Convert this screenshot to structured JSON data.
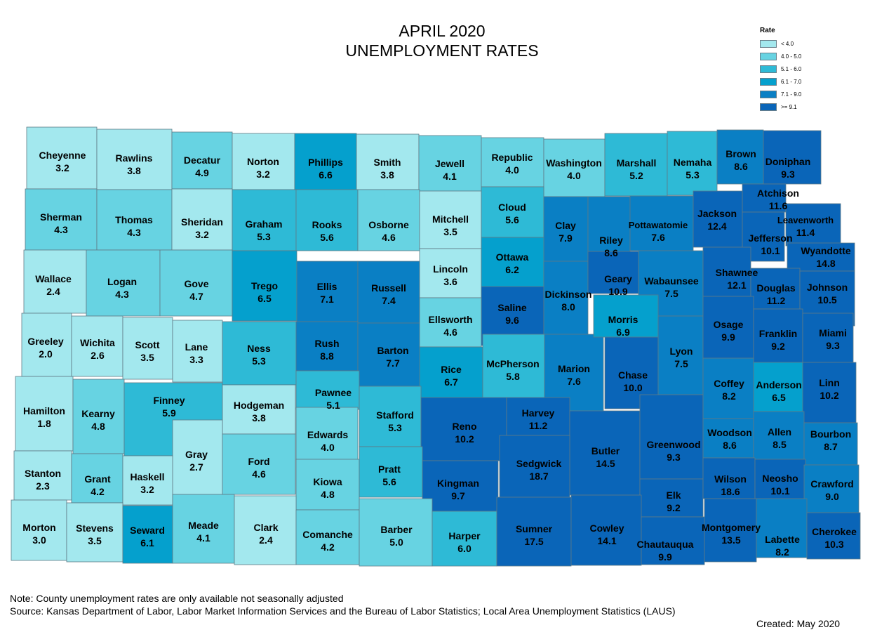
{
  "title": {
    "line1": "APRIL 2020",
    "line2": "UNEMPLOYMENT RATES"
  },
  "legend": {
    "title": "Rate",
    "items": [
      {
        "label": "< 4.0",
        "color": "#a3e8ee"
      },
      {
        "label": "4.0 - 5.0",
        "color": "#67d3e2"
      },
      {
        "label": "5.1 - 6.0",
        "color": "#2ebad6"
      },
      {
        "label": "6.1 - 7.0",
        "color": "#05a0cd"
      },
      {
        "label": "7.1 - 9.0",
        "color": "#0a7fc4"
      },
      {
        "label": ">= 9.1",
        "color": "#0a65b8"
      }
    ]
  },
  "counties": [
    {
      "name": "Cheyenne",
      "rate": "3.2"
    },
    {
      "name": "Rawlins",
      "rate": "3.8"
    },
    {
      "name": "Decatur",
      "rate": "4.9"
    },
    {
      "name": "Norton",
      "rate": "3.2"
    },
    {
      "name": "Phillips",
      "rate": "6.6"
    },
    {
      "name": "Smith",
      "rate": "3.8"
    },
    {
      "name": "Jewell",
      "rate": "4.1"
    },
    {
      "name": "Republic",
      "rate": "4.0"
    },
    {
      "name": "Washington",
      "rate": "4.0"
    },
    {
      "name": "Marshall",
      "rate": "5.2"
    },
    {
      "name": "Nemaha",
      "rate": "5.3"
    },
    {
      "name": "Brown",
      "rate": "8.6"
    },
    {
      "name": "Doniphan",
      "rate": "9.3"
    },
    {
      "name": "Sherman",
      "rate": "4.3"
    },
    {
      "name": "Thomas",
      "rate": "4.3"
    },
    {
      "name": "Sheridan",
      "rate": "3.2"
    },
    {
      "name": "Graham",
      "rate": "5.3"
    },
    {
      "name": "Rooks",
      "rate": "5.6"
    },
    {
      "name": "Osborne",
      "rate": "4.6"
    },
    {
      "name": "Mitchell",
      "rate": "3.5"
    },
    {
      "name": "Cloud",
      "rate": "5.6"
    },
    {
      "name": "Clay",
      "rate": "7.9"
    },
    {
      "name": "Riley",
      "rate": "8.6"
    },
    {
      "name": "Pottawatomie",
      "rate": "7.6"
    },
    {
      "name": "Jackson",
      "rate": "12.4"
    },
    {
      "name": "Atchison",
      "rate": "11.6"
    },
    {
      "name": "Jefferson",
      "rate": "10.1"
    },
    {
      "name": "Leavenworth",
      "rate": "11.4"
    },
    {
      "name": "Wyandotte",
      "rate": "14.8"
    },
    {
      "name": "Wallace",
      "rate": "2.4"
    },
    {
      "name": "Logan",
      "rate": "4.3"
    },
    {
      "name": "Gove",
      "rate": "4.7"
    },
    {
      "name": "Trego",
      "rate": "6.5"
    },
    {
      "name": "Ellis",
      "rate": "7.1"
    },
    {
      "name": "Russell",
      "rate": "7.4"
    },
    {
      "name": "Lincoln",
      "rate": "3.6"
    },
    {
      "name": "Ottawa",
      "rate": "6.2"
    },
    {
      "name": "Saline",
      "rate": "9.6"
    },
    {
      "name": "Dickinson",
      "rate": "8.0"
    },
    {
      "name": "Geary",
      "rate": "10.9"
    },
    {
      "name": "Wabaunsee",
      "rate": "7.5"
    },
    {
      "name": "Shawnee",
      "rate": "12.1"
    },
    {
      "name": "Douglas",
      "rate": "11.2"
    },
    {
      "name": "Johnson",
      "rate": "10.5"
    },
    {
      "name": "Greeley",
      "rate": "2.0"
    },
    {
      "name": "Wichita",
      "rate": "2.6"
    },
    {
      "name": "Scott",
      "rate": "3.5"
    },
    {
      "name": "Lane",
      "rate": "3.3"
    },
    {
      "name": "Ness",
      "rate": "5.3"
    },
    {
      "name": "Rush",
      "rate": "8.8"
    },
    {
      "name": "Barton",
      "rate": "7.7"
    },
    {
      "name": "Ellsworth",
      "rate": "4.6"
    },
    {
      "name": "Rice",
      "rate": "6.7"
    },
    {
      "name": "McPherson",
      "rate": "5.8"
    },
    {
      "name": "Marion",
      "rate": "7.6"
    },
    {
      "name": "Morris",
      "rate": "6.9"
    },
    {
      "name": "Chase",
      "rate": "10.0"
    },
    {
      "name": "Lyon",
      "rate": "7.5"
    },
    {
      "name": "Osage",
      "rate": "9.9"
    },
    {
      "name": "Franklin",
      "rate": "9.2"
    },
    {
      "name": "Miami",
      "rate": "9.3"
    },
    {
      "name": "Hamilton",
      "rate": "1.8"
    },
    {
      "name": "Kearny",
      "rate": "4.8"
    },
    {
      "name": "Finney",
      "rate": "5.9"
    },
    {
      "name": "Hodgeman",
      "rate": "3.8"
    },
    {
      "name": "Pawnee",
      "rate": "5.1"
    },
    {
      "name": "Stafford",
      "rate": "5.3"
    },
    {
      "name": "Reno",
      "rate": "10.2"
    },
    {
      "name": "Harvey",
      "rate": "11.2"
    },
    {
      "name": "Butler",
      "rate": "14.5"
    },
    {
      "name": "Greenwood",
      "rate": "9.3"
    },
    {
      "name": "Coffey",
      "rate": "8.2"
    },
    {
      "name": "Anderson",
      "rate": "6.5"
    },
    {
      "name": "Linn",
      "rate": "10.2"
    },
    {
      "name": "Gray",
      "rate": "2.7"
    },
    {
      "name": "Ford",
      "rate": "4.6"
    },
    {
      "name": "Edwards",
      "rate": "4.0"
    },
    {
      "name": "Sedgwick",
      "rate": "18.7"
    },
    {
      "name": "Woodson",
      "rate": "8.6"
    },
    {
      "name": "Allen",
      "rate": "8.5"
    },
    {
      "name": "Bourbon",
      "rate": "8.7"
    },
    {
      "name": "Stanton",
      "rate": "2.3"
    },
    {
      "name": "Grant",
      "rate": "4.2"
    },
    {
      "name": "Haskell",
      "rate": "3.2"
    },
    {
      "name": "Kiowa",
      "rate": "4.8"
    },
    {
      "name": "Pratt",
      "rate": "5.6"
    },
    {
      "name": "Kingman",
      "rate": "9.7"
    },
    {
      "name": "Elk",
      "rate": "9.2"
    },
    {
      "name": "Wilson",
      "rate": "18.6"
    },
    {
      "name": "Neosho",
      "rate": "10.1"
    },
    {
      "name": "Crawford",
      "rate": "9.0"
    },
    {
      "name": "Morton",
      "rate": "3.0"
    },
    {
      "name": "Stevens",
      "rate": "3.5"
    },
    {
      "name": "Seward",
      "rate": "6.1"
    },
    {
      "name": "Meade",
      "rate": "4.1"
    },
    {
      "name": "Clark",
      "rate": "2.4"
    },
    {
      "name": "Comanche",
      "rate": "4.2"
    },
    {
      "name": "Barber",
      "rate": "5.0"
    },
    {
      "name": "Harper",
      "rate": "6.0"
    },
    {
      "name": "Sumner",
      "rate": "17.5"
    },
    {
      "name": "Cowley",
      "rate": "14.1"
    },
    {
      "name": "Chautauqua",
      "rate": "9.9"
    },
    {
      "name": "Montgomery",
      "rate": "13.5"
    },
    {
      "name": "Labette",
      "rate": "8.2"
    },
    {
      "name": "Cherokee",
      "rate": "10.3"
    }
  ],
  "notes": {
    "line1": "Note: County unemployment rates are only available not seasonally adjusted",
    "line2": "Source: Kansas Department of Labor, Labor Market Information Services and the Bureau of Labor Statistics; Local Area Unemployment Statistics (LAUS)",
    "created": "Created:  May 2020"
  }
}
